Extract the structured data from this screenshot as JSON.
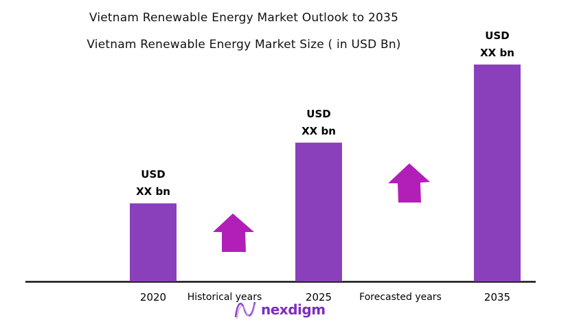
{
  "chart_data": {
    "type": "bar",
    "title": "Vietnam Renewable Energy   Market Outlook to 2035",
    "subtitle": "Vietnam Renewable Energy Market Size  ( in USD Bn)",
    "categories": [
      "2020",
      "2025",
      "2035"
    ],
    "values": [
      36,
      64,
      100
    ],
    "value_note_units": "relative bar height, % of 2035 bar (no numeric axis shown)",
    "data_labels": [
      {
        "line1": "USD",
        "line2": "XX bn"
      },
      {
        "line1": "USD",
        "line2": "XX bn"
      },
      {
        "line1": "USD",
        "line2": "XX bn"
      }
    ],
    "annotations": [
      "Historical years",
      "Forecasted years"
    ],
    "bar_color": "#8a40bb",
    "arrow_color": "#b21fb8",
    "grid": false,
    "xlabel": "",
    "ylabel": ""
  },
  "logo": {
    "text": "nexdigm"
  }
}
